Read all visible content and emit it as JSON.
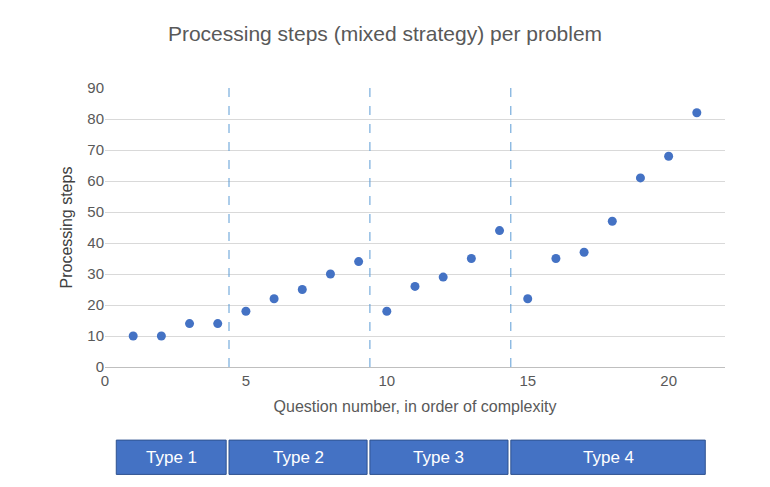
{
  "chart_data": {
    "type": "scatter",
    "title": "Processing steps (mixed strategy) per problem",
    "x_label": "Question number, in order of complexity",
    "y_label": "Processing steps",
    "x": [
      1,
      2,
      3,
      4,
      5,
      6,
      7,
      8,
      9,
      10,
      11,
      12,
      13,
      14,
      15,
      16,
      17,
      18,
      19,
      20,
      21
    ],
    "values": [
      10,
      10,
      14,
      14,
      18,
      22,
      25,
      30,
      34,
      18,
      26,
      29,
      35,
      44,
      22,
      35,
      37,
      47,
      61,
      68,
      82
    ],
    "color": "#4472c4",
    "marker": "circle",
    "xlim": [
      0,
      22
    ],
    "xticks": [
      0,
      5,
      10,
      15,
      20
    ],
    "ylim": [
      0,
      90
    ],
    "yticks": [
      0,
      10,
      20,
      30,
      40,
      50,
      60,
      70,
      80,
      90
    ],
    "grid": true,
    "dividers": [
      4.4,
      9.4,
      14.4
    ],
    "groups": [
      {
        "label": "Type 1",
        "first": 1,
        "last": 4
      },
      {
        "label": "Type 2",
        "first": 5,
        "last": 9
      },
      {
        "label": "Type 3",
        "first": 10,
        "last": 14
      },
      {
        "label": "Type 4",
        "first": 15,
        "last": 21
      }
    ]
  }
}
